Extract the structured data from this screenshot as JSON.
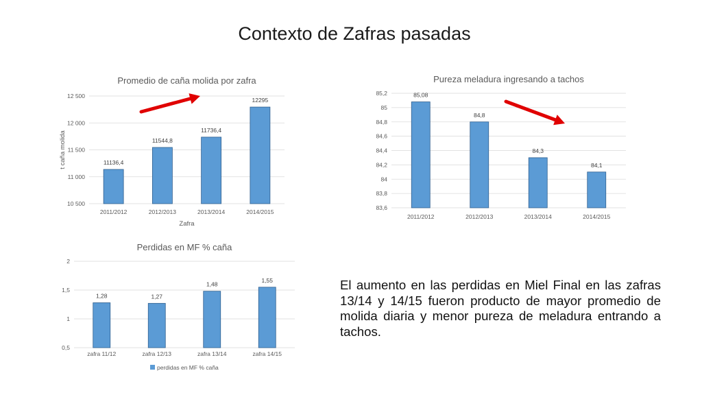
{
  "slide": {
    "title": "Contexto de Zafras pasadas",
    "body": "El aumento en las perdidas en Miel Final en las zafras 13/14 y 14/15 fueron producto de mayor promedio de molida diaria y menor pureza de meladura entrando a tachos."
  },
  "colors": {
    "bar": "#5b9bd5",
    "arrow": "#e00000"
  },
  "chart_data": [
    {
      "id": "cana",
      "type": "bar",
      "title": "Promedio de caña molida por zafra",
      "xlabel": "Zafra",
      "ylabel": "t caña molida",
      "categories": [
        "2011/2012",
        "2012/2013",
        "2013/2014",
        "2014/2015"
      ],
      "values": [
        11136.4,
        11544.8,
        11736.4,
        12295
      ],
      "data_labels": [
        "11136,4",
        "11544,8",
        "11736,4",
        "12295"
      ],
      "ylim": [
        10500,
        12500
      ],
      "yticks": [
        10500,
        11000,
        11500,
        12000,
        12500
      ],
      "ytick_labels": [
        "10 500",
        "11 000",
        "11 500",
        "12 000",
        "12 500"
      ],
      "grid": true,
      "annotation": {
        "type": "arrow",
        "direction": "up"
      }
    },
    {
      "id": "pureza",
      "type": "bar",
      "title": "Pureza meladura ingresando a tachos",
      "categories": [
        "2011/2012",
        "2012/2013",
        "2013/2014",
        "2014/2015"
      ],
      "values": [
        85.08,
        84.8,
        84.3,
        84.1
      ],
      "data_labels": [
        "85,08",
        "84,8",
        "84,3",
        "84,1"
      ],
      "ylim": [
        83.6,
        85.2
      ],
      "yticks": [
        83.6,
        83.8,
        84,
        84.2,
        84.4,
        84.6,
        84.8,
        85,
        85.2
      ],
      "ytick_labels": [
        "83,6",
        "83,8",
        "84",
        "84,2",
        "84,4",
        "84,6",
        "84,8",
        "85",
        "85,2"
      ],
      "grid": true,
      "annotation": {
        "type": "arrow",
        "direction": "down"
      }
    },
    {
      "id": "perdidas",
      "type": "bar",
      "title": "Perdidas en MF % caña",
      "categories": [
        "zafra 11/12",
        "zafra 12/13",
        "zafra 13/14",
        "zafra 14/15"
      ],
      "series": [
        {
          "name": "perdidas en MF % caña",
          "values": [
            1.28,
            1.27,
            1.48,
            1.55
          ]
        }
      ],
      "values": [
        1.28,
        1.27,
        1.48,
        1.55
      ],
      "data_labels": [
        "1,28",
        "1,27",
        "1,48",
        "1,55"
      ],
      "ylim": [
        0.5,
        2
      ],
      "yticks": [
        0.5,
        1,
        1.5,
        2
      ],
      "ytick_labels": [
        "0,5",
        "1",
        "1,5",
        "2"
      ],
      "grid": true,
      "legend": "bottom"
    }
  ]
}
